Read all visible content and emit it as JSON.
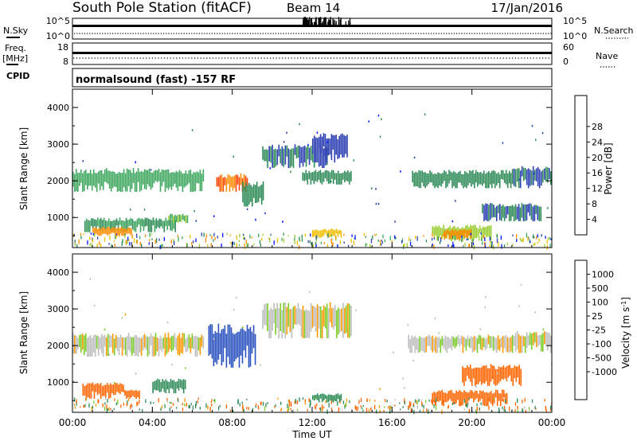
{
  "header": {
    "station": "South Pole Station (fitACF)",
    "beam": "Beam 14",
    "date": "17/Jan/2016"
  },
  "strip_labels": {
    "nsky": "N.Sky",
    "nsky_high": "10^5",
    "nsky_low": "10^0",
    "nsearch": "N.Search",
    "nsearch_high": "10^5",
    "nsearch_low": "10^0",
    "freq_line1": "Freq.",
    "freq_line2": "[MHz]",
    "freq_high": "18",
    "freq_low": "8",
    "nave": "Nave",
    "nave_high": "60",
    "nave_low": "0",
    "cpid": "CPID",
    "cpid_text": "normalsound (fast) -157 RF"
  },
  "colors": {
    "power_scale": [
      "#0018ff",
      "#2b3fb2",
      "#2e8b57",
      "#3fa75f",
      "#9acd32",
      "#f0c000",
      "#ff8c00",
      "#ff4500",
      "#ff0000"
    ],
    "velocity_scale": [
      "#0c1fd0",
      "#2a52be",
      "#2e8b57",
      "#7acc29",
      "#bfbfbf",
      "#bfbfbf",
      "#ff9900",
      "#ff6600",
      "#e51e00",
      "#ff0000"
    ]
  },
  "chart_data": [
    {
      "type": "heatmap",
      "panel": "power",
      "xlabel": "Time UT",
      "ylabel": "Slant Range [km]",
      "x_ticks": [
        "00:00",
        "04:00",
        "08:00",
        "12:00",
        "16:00",
        "20:00",
        "00:00"
      ],
      "y_ticks": [
        "1000",
        "2000",
        "3000",
        "4000"
      ],
      "xlim_hours": [
        0,
        24
      ],
      "ylim_km": [
        180,
        4500
      ],
      "colorbar_label": "Power [dB]",
      "colorbar_ticks": [
        "4",
        "8",
        "12",
        "16",
        "20",
        "24",
        "28"
      ],
      "regions": [
        {
          "t0": 0.0,
          "t1": 6.6,
          "r0": 1700,
          "r1": 2350,
          "level": 14
        },
        {
          "t0": 0.6,
          "t1": 5.2,
          "r0": 600,
          "r1": 1000,
          "level": 12
        },
        {
          "t0": 1.0,
          "t1": 3.0,
          "r0": 500,
          "r1": 750,
          "level": 26
        },
        {
          "t0": 4.8,
          "t1": 5.8,
          "r0": 850,
          "r1": 1100,
          "level": 16
        },
        {
          "t0": 7.2,
          "t1": 8.8,
          "r0": 1700,
          "r1": 2200,
          "level": 28
        },
        {
          "t0": 8.5,
          "t1": 9.6,
          "r0": 1300,
          "r1": 2000,
          "level": 10
        },
        {
          "t0": 9.5,
          "t1": 12.8,
          "r0": 2350,
          "r1": 3000,
          "level": 8
        },
        {
          "t0": 12.0,
          "t1": 13.8,
          "r0": 2500,
          "r1": 3300,
          "level": 6
        },
        {
          "t0": 11.5,
          "t1": 14.0,
          "r0": 1900,
          "r1": 2300,
          "level": 10
        },
        {
          "t0": 12.0,
          "t1": 13.5,
          "r0": 450,
          "r1": 700,
          "level": 22
        },
        {
          "t0": 17.0,
          "t1": 22.0,
          "r0": 1800,
          "r1": 2300,
          "level": 10
        },
        {
          "t0": 18.0,
          "t1": 21.0,
          "r0": 350,
          "r1": 800,
          "level": 18
        },
        {
          "t0": 18.6,
          "t1": 20.0,
          "r0": 400,
          "r1": 700,
          "level": 26
        },
        {
          "t0": 20.5,
          "t1": 23.5,
          "r0": 900,
          "r1": 1400,
          "level": 8
        },
        {
          "t0": 22.0,
          "t1": 24.0,
          "r0": 1800,
          "r1": 2400,
          "level": 8
        }
      ]
    },
    {
      "type": "heatmap",
      "panel": "velocity",
      "xlabel": "Time UT",
      "ylabel": "Slant Range [km]",
      "x_ticks": [
        "00:00",
        "04:00",
        "08:00",
        "12:00",
        "16:00",
        "20:00",
        "00:00"
      ],
      "y_ticks": [
        "1000",
        "2000",
        "3000",
        "4000"
      ],
      "xlim_hours": [
        0,
        24
      ],
      "ylim_km": [
        180,
        4500
      ],
      "colorbar_label": "Velocity [m s^-1]",
      "colorbar_ticks": [
        "1000",
        "500",
        "100",
        "25",
        "-25",
        "-100",
        "-500",
        "-1000"
      ],
      "regions": [
        {
          "t0": 0.0,
          "t1": 6.6,
          "r0": 1700,
          "r1": 2350,
          "level": 0
        },
        {
          "t0": 0.5,
          "t1": 2.6,
          "r0": 550,
          "r1": 1000,
          "level": -300
        },
        {
          "t0": 2.6,
          "t1": 3.4,
          "r0": 550,
          "r1": 800,
          "level": -300
        },
        {
          "t0": 4.0,
          "t1": 5.7,
          "r0": 700,
          "r1": 1100,
          "level": 200
        },
        {
          "t0": 6.8,
          "t1": 9.2,
          "r0": 1400,
          "r1": 2600,
          "level": 700
        },
        {
          "t0": 9.5,
          "t1": 14.0,
          "r0": 2200,
          "r1": 3200,
          "level": 0
        },
        {
          "t0": 12.0,
          "t1": 13.5,
          "r0": 450,
          "r1": 700,
          "level": 300
        },
        {
          "t0": 16.8,
          "t1": 22.0,
          "r0": 1800,
          "r1": 2300,
          "level": 0
        },
        {
          "t0": 18.0,
          "t1": 21.8,
          "r0": 350,
          "r1": 800,
          "level": -400
        },
        {
          "t0": 19.5,
          "t1": 22.5,
          "r0": 900,
          "r1": 1500,
          "level": -300
        },
        {
          "t0": 22.0,
          "t1": 24.0,
          "r0": 1800,
          "r1": 2400,
          "level": 0
        }
      ]
    }
  ]
}
